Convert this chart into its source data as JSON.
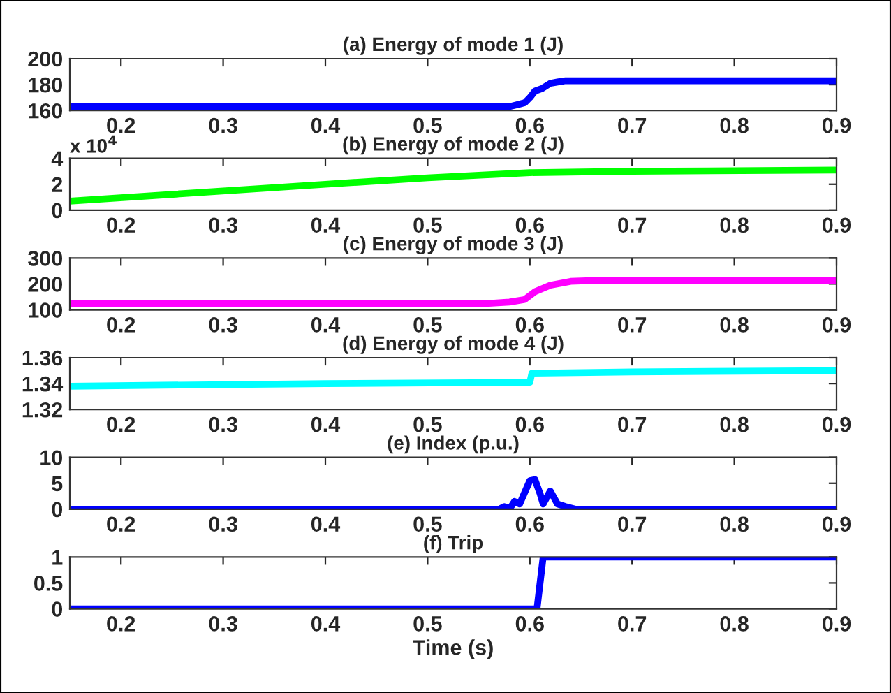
{
  "chart_data": [
    {
      "type": "line",
      "title": "(a) Energy of mode 1 (J)",
      "x": [
        0.15,
        0.3,
        0.5,
        0.58,
        0.59,
        0.595,
        0.6,
        0.605,
        0.612,
        0.62,
        0.627,
        0.635,
        0.7,
        0.9
      ],
      "series": [
        {
          "color": "#0000ff",
          "values": [
            163,
            163,
            163,
            163,
            165,
            166,
            170,
            175,
            177,
            181,
            182,
            183,
            183,
            183
          ]
        }
      ],
      "xlim": [
        0.15,
        0.9
      ],
      "xticks": [
        0.2,
        0.3,
        0.4,
        0.5,
        0.6,
        0.7,
        0.8,
        0.9
      ],
      "ylim": [
        160,
        200
      ],
      "yticks": [
        160,
        180,
        200
      ],
      "grid": false,
      "legend": false
    },
    {
      "type": "line",
      "title": "(b) Energy of mode 2 (J)",
      "annotations": [
        "x 10$^{4}$"
      ],
      "x": [
        0.15,
        0.4,
        0.5,
        0.6,
        0.7,
        0.9
      ],
      "series": [
        {
          "color": "#00ff00",
          "values": [
            0.7,
            2.0,
            2.5,
            2.9,
            3.0,
            3.1
          ]
        }
      ],
      "xlim": [
        0.15,
        0.9
      ],
      "xticks": [
        0.2,
        0.3,
        0.4,
        0.5,
        0.6,
        0.7,
        0.8,
        0.9
      ],
      "ylim": [
        0,
        4
      ],
      "yticks": [
        0,
        2,
        4
      ],
      "grid": false,
      "legend": false
    },
    {
      "type": "line",
      "title": "(c) Energy of mode 3 (J)",
      "x": [
        0.15,
        0.56,
        0.58,
        0.595,
        0.605,
        0.62,
        0.64,
        0.66,
        0.9
      ],
      "series": [
        {
          "color": "#ff00ff",
          "values": [
            125,
            125,
            130,
            140,
            170,
            195,
            210,
            213,
            213
          ]
        }
      ],
      "xlim": [
        0.15,
        0.9
      ],
      "xticks": [
        0.2,
        0.3,
        0.4,
        0.5,
        0.6,
        0.7,
        0.8,
        0.9
      ],
      "ylim": [
        100,
        300
      ],
      "yticks": [
        100,
        200,
        300
      ],
      "grid": false,
      "legend": false
    },
    {
      "type": "line",
      "title": "(d) Energy of mode 4 (J)",
      "x": [
        0.15,
        0.4,
        0.6,
        0.602,
        0.7,
        0.9
      ],
      "series": [
        {
          "color": "#00ffff",
          "values": [
            1.338,
            1.34,
            1.341,
            1.348,
            1.349,
            1.35
          ]
        }
      ],
      "xlim": [
        0.15,
        0.9
      ],
      "xticks": [
        0.2,
        0.3,
        0.4,
        0.5,
        0.6,
        0.7,
        0.8,
        0.9
      ],
      "ylim": [
        1.32,
        1.36
      ],
      "yticks": [
        1.32,
        1.34,
        1.36
      ],
      "grid": false,
      "legend": false
    },
    {
      "type": "line",
      "title": "(e) Index (p.u.)",
      "x": [
        0.15,
        0.57,
        0.575,
        0.58,
        0.585,
        0.59,
        0.6,
        0.605,
        0.61,
        0.613,
        0.62,
        0.627,
        0.635,
        0.645,
        0.9
      ],
      "series": [
        {
          "color": "#0000ff",
          "values": [
            0,
            0,
            0.5,
            0,
            1.5,
            1,
            5.5,
            5.7,
            3,
            1,
            3.5,
            1,
            0.5,
            0,
            0
          ]
        }
      ],
      "xlim": [
        0.15,
        0.9
      ],
      "xticks": [
        0.2,
        0.3,
        0.4,
        0.5,
        0.6,
        0.7,
        0.8,
        0.9
      ],
      "ylim": [
        0,
        10
      ],
      "yticks": [
        0,
        5,
        10
      ],
      "grid": false,
      "legend": false
    },
    {
      "type": "line",
      "title": "(f) Trip",
      "xlabel": "Time (s)",
      "x": [
        0.15,
        0.607,
        0.613,
        0.9
      ],
      "series": [
        {
          "color": "#0000ff",
          "values": [
            0,
            0,
            1,
            1
          ]
        }
      ],
      "xlim": [
        0.15,
        0.9
      ],
      "xticks": [
        0.2,
        0.3,
        0.4,
        0.5,
        0.6,
        0.7,
        0.8,
        0.9
      ],
      "ylim": [
        0,
        1
      ],
      "yticks": [
        0,
        0.5,
        1
      ],
      "grid": false,
      "legend": false
    }
  ]
}
